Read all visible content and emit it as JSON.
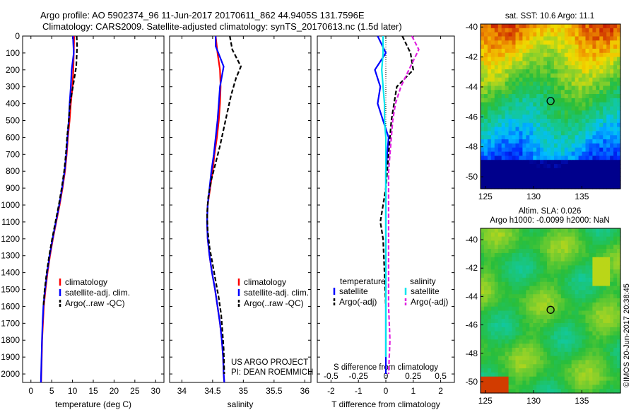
{
  "title": {
    "line1": "Argo profile: AO 5902374_96 11-Jun-2017 20170611_862 44.9405S 131.7596E",
    "line2": "Climatology: CARS2009. Satellite-adjusted climatology: synTS_20170613.nc (1.5d later)"
  },
  "colors": {
    "climatology": "#ff0000",
    "satellite": "#0000ff",
    "argo": "#000000",
    "sal_satellite": "#00e5ee",
    "sal_argo": "#e020e0"
  },
  "panel_credit": {
    "line1": "US ARGO PROJECT",
    "line2": "PI: DEAN ROEMMICH"
  },
  "sst_map": {
    "title": "sat. SST: 10.6 Argo: 11.1"
  },
  "sla_map": {
    "title1": "Altim. SLA: 0.026",
    "title2": "Argo h1000: -0.0099 h2000: NaN"
  },
  "watermark": "©IMOS 20-Jun-2017 20:38:45",
  "chart_data": [
    {
      "type": "line",
      "panel": "temperature",
      "xlabel": "temperature (deg C)",
      "xlim": [
        -2,
        32
      ],
      "ylim": [
        2050,
        0
      ],
      "xticks": [
        0,
        5,
        10,
        15,
        20,
        25,
        30
      ],
      "yticks": [
        0,
        100,
        200,
        300,
        400,
        500,
        600,
        700,
        800,
        900,
        1000,
        1100,
        1200,
        1300,
        1400,
        1500,
        1600,
        1700,
        1800,
        1900,
        2000
      ],
      "legend": [
        "climatology",
        "satellite-adj. clim.",
        "Argo(..raw -QC)"
      ],
      "series": [
        {
          "name": "climatology",
          "style": "solid",
          "color": "#ff0000",
          "x": [
            10.4,
            10.3,
            10.2,
            10.0,
            9.6,
            9.3,
            8.9,
            8.6,
            8.2,
            7.6,
            6.9,
            6.1,
            5.3,
            4.6,
            4.0,
            3.5,
            3.1,
            2.9,
            2.7,
            2.6,
            2.5,
            2.45
          ],
          "y": [
            0,
            100,
            200,
            300,
            400,
            500,
            600,
            700,
            800,
            900,
            1000,
            1100,
            1200,
            1300,
            1400,
            1500,
            1600,
            1700,
            1800,
            1900,
            2000,
            2050
          ]
        },
        {
          "name": "satellite-adj. clim.",
          "style": "solid",
          "color": "#0000ff",
          "x": [
            10.1,
            10.3,
            9.8,
            9.6,
            9.3,
            9.1,
            8.8,
            8.5,
            8.1,
            7.5,
            6.8,
            6.0,
            5.2,
            4.5,
            3.9,
            3.4,
            3.0,
            2.8,
            2.65,
            2.55,
            2.45,
            2.4
          ],
          "y": [
            0,
            100,
            200,
            300,
            400,
            500,
            600,
            700,
            800,
            900,
            1000,
            1100,
            1200,
            1300,
            1400,
            1500,
            1600,
            1700,
            1800,
            1900,
            2000,
            2050
          ]
        },
        {
          "name": "Argo(..raw -QC)",
          "style": "dashed",
          "color": "#000000",
          "x": [
            11.0,
            11.1,
            10.9,
            10.1,
            9.4,
            9.1,
            8.7,
            8.4,
            8.0,
            7.4,
            6.7,
            5.9,
            5.1,
            4.4,
            3.8,
            3.3,
            3.0
          ],
          "y": [
            0,
            60,
            180,
            300,
            400,
            500,
            600,
            700,
            800,
            900,
            1000,
            1100,
            1200,
            1300,
            1400,
            1500,
            1600
          ]
        }
      ]
    },
    {
      "type": "line",
      "panel": "salinity",
      "xlabel": "salinity",
      "xlim": [
        33.8,
        36.1
      ],
      "ylim": [
        2050,
        0
      ],
      "xticks": [
        34,
        34.5,
        35,
        35.5,
        36
      ],
      "legend": [
        "climatology",
        "satellite-adj. clim.",
        "Argo(..raw -QC)"
      ],
      "series": [
        {
          "name": "climatology",
          "style": "solid",
          "color": "#ff0000",
          "x": [
            34.55,
            34.58,
            34.62,
            34.63,
            34.62,
            34.6,
            34.57,
            34.53,
            34.5,
            34.46,
            34.42,
            34.41,
            34.42,
            34.45,
            34.49,
            34.54,
            34.58,
            34.62,
            34.65,
            34.67,
            34.68,
            34.69
          ],
          "y": [
            0,
            100,
            200,
            300,
            400,
            500,
            600,
            700,
            800,
            900,
            1000,
            1100,
            1200,
            1300,
            1400,
            1500,
            1600,
            1700,
            1800,
            1900,
            2000,
            2050
          ]
        },
        {
          "name": "satellite-adj. clim.",
          "style": "solid",
          "color": "#0000ff",
          "x": [
            34.55,
            34.55,
            34.68,
            34.62,
            34.6,
            34.58,
            34.55,
            34.52,
            34.48,
            34.45,
            34.42,
            34.41,
            34.42,
            34.45,
            34.49,
            34.54,
            34.58,
            34.62,
            34.65,
            34.67,
            34.68,
            34.69
          ],
          "y": [
            0,
            60,
            180,
            300,
            400,
            500,
            600,
            700,
            800,
            900,
            1000,
            1100,
            1200,
            1300,
            1400,
            1500,
            1600,
            1700,
            1800,
            1900,
            2000,
            2050
          ]
        },
        {
          "name": "Argo(..raw -QC)",
          "style": "dashed",
          "color": "#000000",
          "x": [
            34.78,
            34.82,
            34.96,
            34.88,
            34.8,
            34.74,
            34.68,
            34.62,
            34.55,
            34.48,
            34.43,
            34.41,
            34.42,
            34.45,
            34.5,
            34.55,
            34.6,
            34.64,
            34.66,
            34.68,
            34.69
          ],
          "y": [
            0,
            80,
            180,
            250,
            350,
            450,
            550,
            650,
            750,
            850,
            950,
            1050,
            1150,
            1250,
            1350,
            1450,
            1550,
            1650,
            1750,
            1850,
            2000
          ]
        }
      ]
    },
    {
      "type": "line",
      "panel": "differences",
      "xlabel": "T difference from climatology",
      "xlabel_top": "S difference from climatology",
      "xlim": [
        -2.5,
        2.5
      ],
      "xlim_top": [
        -0.625,
        0.625
      ],
      "ylim": [
        2050,
        0
      ],
      "xticks": [
        -2,
        -1,
        0,
        1,
        2
      ],
      "xticks_top": [
        -0.5,
        -0.25,
        0,
        0.25,
        0.5
      ],
      "legend_temperature": {
        "header": "temperature",
        "items": [
          "satellite",
          "Argo(-adj)"
        ]
      },
      "legend_salinity": {
        "header": "salinity",
        "items": [
          "satellite",
          "Argo(-adj)"
        ]
      },
      "series": [
        {
          "name": "satellite",
          "group": "temperature",
          "style": "solid",
          "color": "#0000ff",
          "x": [
            -0.3,
            0.0,
            -0.4,
            -0.2,
            -0.3,
            -0.1,
            0.1,
            0.05,
            0.0,
            0.0,
            0.0,
            0.0,
            0.0,
            0.0,
            0.0,
            0.0
          ],
          "y": [
            0,
            100,
            200,
            300,
            400,
            500,
            600,
            700,
            800,
            900,
            1000,
            1200,
            1400,
            1600,
            1800,
            2000
          ]
        },
        {
          "name": "Argo(-adj)",
          "group": "temperature",
          "style": "dashed",
          "color": "#000000",
          "x": [
            0.6,
            0.9,
            1.0,
            0.4,
            0.3,
            0.2,
            0.15,
            0.1,
            0.05,
            0.0,
            -0.1,
            -0.2,
            -0.1,
            -0.05,
            0.0
          ],
          "y": [
            0,
            100,
            200,
            300,
            400,
            500,
            600,
            700,
            800,
            900,
            1000,
            1100,
            1200,
            1400,
            1600
          ]
        },
        {
          "name": "satellite",
          "group": "salinity",
          "style": "solid",
          "color": "#00e5ee",
          "x": [
            -0.1,
            -0.1,
            -0.15,
            -0.1,
            -0.05,
            -0.05,
            0.0,
            0.0,
            0.0,
            0.0,
            0.0,
            0.0,
            0.0,
            0.0
          ],
          "y": [
            0,
            100,
            200,
            300,
            400,
            500,
            600,
            700,
            800,
            1000,
            1200,
            1400,
            1600,
            1900
          ]
        },
        {
          "name": "Argo(-adj)",
          "group": "salinity",
          "style": "dashed",
          "color": "#e020e0",
          "x": [
            0.95,
            1.2,
            0.9,
            0.55,
            0.35,
            0.25,
            0.2,
            0.15,
            0.1,
            0.1,
            0.1,
            0.1,
            0.1,
            0.15,
            0.1
          ],
          "y": [
            0,
            80,
            180,
            300,
            400,
            500,
            600,
            700,
            800,
            1000,
            1200,
            1400,
            1600,
            1800,
            2000
          ]
        }
      ]
    },
    {
      "type": "heatmap",
      "panel": "sst-map",
      "xlim": [
        124.5,
        139
      ],
      "ylim": [
        -50.8,
        -39.8
      ],
      "xticks": [
        125,
        130,
        135
      ],
      "yticks": [
        -40,
        -42,
        -44,
        -46,
        -48,
        -50
      ],
      "argo_position": {
        "lon": 131.7596,
        "lat": -44.9405
      }
    },
    {
      "type": "heatmap",
      "panel": "sla-map",
      "xlim": [
        124.5,
        139
      ],
      "ylim": [
        -50.8,
        -39.2
      ],
      "xticks": [
        125,
        130,
        135
      ],
      "yticks": [
        -40,
        -42,
        -44,
        -46,
        -48,
        -50
      ],
      "argo_position": {
        "lon": 131.7596,
        "lat": -44.9405
      }
    }
  ]
}
